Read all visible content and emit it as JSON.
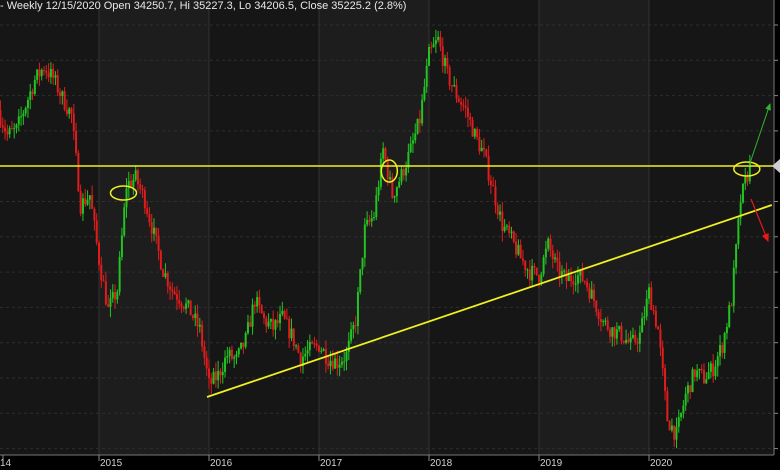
{
  "header": {
    "text": "- Weekly 12/15/2020 Open 34250.7, Hi 35227.3, Lo 34206.5, Close 35225.2 (2.8%)"
  },
  "chart_data": {
    "type": "candlestick",
    "title": "",
    "interval": "Weekly",
    "last_bar": {
      "date": "12/15/2020",
      "open": 34250.7,
      "high": 35227.3,
      "low": 34206.5,
      "close": 35225.2,
      "change_pct": 2.8
    },
    "x_tick_labels": [
      "14",
      "2015",
      "2016",
      "2017",
      "2018",
      "2019",
      "2020"
    ],
    "approx_monthly_close": [
      [
        "2014-02",
        36826
      ],
      [
        "2014-03",
        36111
      ],
      [
        "2014-04",
        36254
      ],
      [
        "2014-05",
        36968
      ],
      [
        "2014-06",
        37682
      ],
      [
        "2014-07",
        38054
      ],
      [
        "2014-08",
        37740
      ],
      [
        "2014-09",
        37168
      ],
      [
        "2014-10",
        36682
      ],
      [
        "2014-11",
        34111
      ],
      [
        "2014-12",
        34397
      ],
      [
        "2015-01",
        32540
      ],
      [
        "2015-02",
        31111
      ],
      [
        "2015-03",
        31683
      ],
      [
        "2015-04",
        34683
      ],
      [
        "2015-05",
        34883
      ],
      [
        "2015-06",
        34254
      ],
      [
        "2015-07",
        33254
      ],
      [
        "2015-08",
        32254
      ],
      [
        "2015-09",
        31683
      ],
      [
        "2015-10",
        31397
      ],
      [
        "2015-11",
        31054
      ],
      [
        "2015-12",
        30540
      ],
      [
        "2016-01",
        28968
      ],
      [
        "2016-02",
        29254
      ],
      [
        "2016-03",
        29825
      ],
      [
        "2016-04",
        29683
      ],
      [
        "2016-05",
        30254
      ],
      [
        "2016-06",
        31397
      ],
      [
        "2016-07",
        30825
      ],
      [
        "2016-08",
        30597
      ],
      [
        "2016-09",
        30883
      ],
      [
        "2016-10",
        30397
      ],
      [
        "2016-11",
        29740
      ],
      [
        "2016-12",
        29968
      ],
      [
        "2017-01",
        30111
      ],
      [
        "2017-02",
        29740
      ],
      [
        "2017-03",
        29625
      ],
      [
        "2017-04",
        29825
      ],
      [
        "2017-05",
        30825
      ],
      [
        "2017-06",
        33397
      ],
      [
        "2017-07",
        33825
      ],
      [
        "2017-08",
        35682
      ],
      [
        "2017-09",
        34397
      ],
      [
        "2017-10",
        34968
      ],
      [
        "2017-11",
        35682
      ],
      [
        "2017-12",
        36540
      ],
      [
        "2018-01",
        38397
      ],
      [
        "2018-02",
        38825
      ],
      [
        "2018-03",
        37825
      ],
      [
        "2018-04",
        37254
      ],
      [
        "2018-05",
        36825
      ],
      [
        "2018-06",
        36111
      ],
      [
        "2018-07",
        35540
      ],
      [
        "2018-08",
        34540
      ],
      [
        "2018-09",
        33540
      ],
      [
        "2018-10",
        33111
      ],
      [
        "2018-11",
        32597
      ],
      [
        "2018-12",
        32197
      ],
      [
        "2019-01",
        32111
      ],
      [
        "2019-02",
        32968
      ],
      [
        "2019-03",
        32254
      ],
      [
        "2019-04",
        31968
      ],
      [
        "2019-05",
        32111
      ],
      [
        "2019-06",
        31968
      ],
      [
        "2019-07",
        31397
      ],
      [
        "2019-08",
        30768
      ],
      [
        "2019-09",
        30540
      ],
      [
        "2019-10",
        30397
      ],
      [
        "2019-11",
        30111
      ],
      [
        "2019-12",
        30397
      ],
      [
        "2020-01",
        31625
      ],
      [
        "2020-02",
        30540
      ],
      [
        "2020-03",
        28000
      ],
      [
        "2020-04",
        27540
      ],
      [
        "2020-05",
        28682
      ],
      [
        "2020-06",
        29340
      ],
      [
        "2020-07",
        29168
      ],
      [
        "2020-08",
        29454
      ],
      [
        "2020-09",
        30111
      ],
      [
        "2020-10",
        31397
      ],
      [
        "2020-11",
        34254
      ],
      [
        "2020-12",
        35225
      ]
    ],
    "ylim": [
      26970,
      39968
    ],
    "grid": true,
    "annotations": {
      "horizontal_line_price": 35225,
      "trendline": [
        [
          "2016-01",
          28627
        ],
        [
          "2020-12",
          34111
        ]
      ],
      "circles": [
        "2015-04",
        "2017-09",
        "2020-12"
      ],
      "arrows": [
        "up",
        "down"
      ]
    },
    "colors": {
      "up": "#22c322",
      "down": "#e01d1d",
      "lines": "#f0f020",
      "arrow_up": "#2fb52f",
      "arrow_down": "#e81818",
      "background": "#161616",
      "band": "#1d1d1d"
    }
  }
}
